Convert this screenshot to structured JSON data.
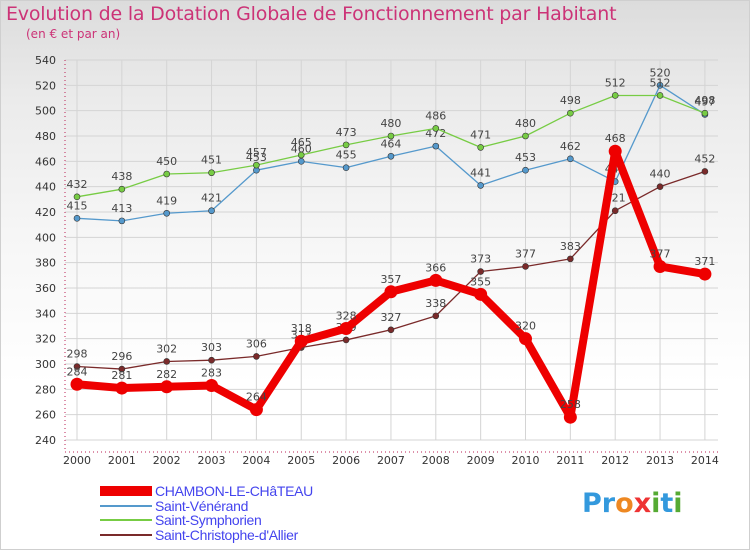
{
  "title": "Evolution de la Dotation Globale de Fonctionnement par Habitant",
  "subtitle": "(en € et par an)",
  "logo": {
    "text": "Proxiti",
    "letters": [
      "P",
      "r",
      "o",
      "x",
      "i",
      "t",
      "i"
    ],
    "colors": [
      "#3399dd",
      "#3399dd",
      "#ee8822",
      "#ee3333",
      "#55aa33",
      "#3399dd",
      "#55aa33"
    ]
  },
  "chart_data": {
    "type": "line",
    "title": "Evolution de la Dotation Globale de Fonctionnement par Habitant",
    "subtitle": "(en € et par an)",
    "categories": [
      "2000",
      "2001",
      "2002",
      "2003",
      "2004",
      "2005",
      "2006",
      "2007",
      "2008",
      "2009",
      "2010",
      "2011",
      "2012",
      "2013",
      "2014"
    ],
    "ylim": [
      240,
      540
    ],
    "yticks": [
      240,
      260,
      280,
      300,
      320,
      340,
      360,
      380,
      400,
      420,
      440,
      460,
      480,
      500,
      520,
      540
    ],
    "grid": true,
    "legend_position": "bottom-left",
    "series": [
      {
        "name": "Saint-Vénérand",
        "color": "#5599cc",
        "values": [
          415,
          413,
          419,
          421,
          453,
          460,
          455,
          464,
          472,
          441,
          453,
          462,
          444,
          520,
          497
        ]
      },
      {
        "name": "Saint-Symphorien",
        "color": "#77cc44",
        "values": [
          432,
          438,
          450,
          451,
          457,
          465,
          473,
          480,
          486,
          471,
          480,
          498,
          512,
          512,
          498
        ]
      },
      {
        "name": "Saint-Christophe-d'Allier",
        "color": "#7a2a2a",
        "values": [
          298,
          296,
          302,
          303,
          306,
          313,
          319,
          327,
          338,
          373,
          377,
          383,
          421,
          440,
          452
        ]
      },
      {
        "name": "CHAMBON-LE-CHâTEAU",
        "color": "#ee0000",
        "values": [
          284,
          281,
          282,
          283,
          264,
          318,
          328,
          357,
          366,
          355,
          320,
          258,
          468,
          377,
          371
        ]
      }
    ]
  }
}
